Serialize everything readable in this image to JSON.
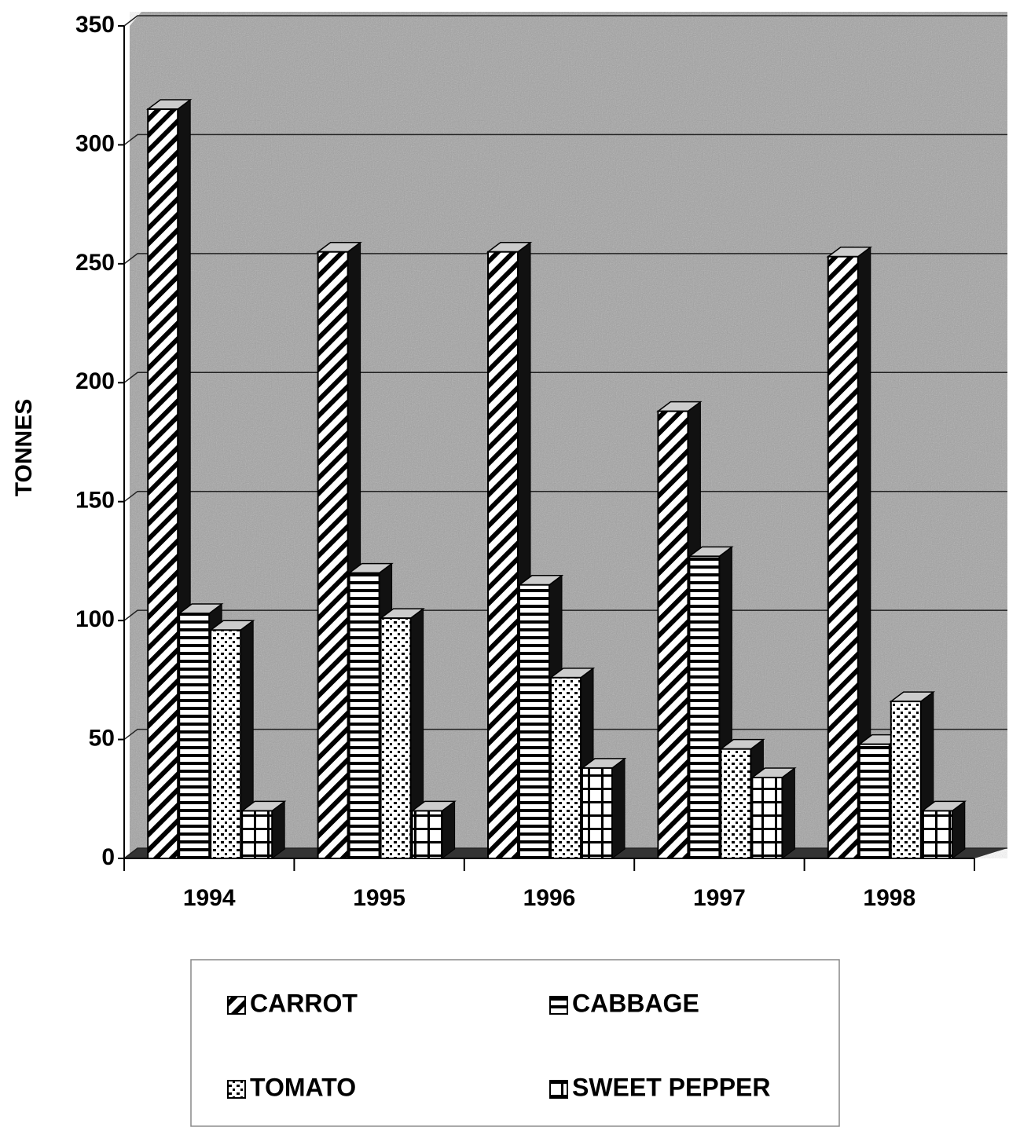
{
  "chart_data": {
    "type": "bar3d",
    "y_label": "TONNES",
    "categories": [
      "1994",
      "1995",
      "1996",
      "1997",
      "1998"
    ],
    "series": [
      {
        "name": "CARROT",
        "color": "#000000",
        "pattern": "diagonal",
        "values": [
          315,
          255,
          255,
          188,
          253
        ]
      },
      {
        "name": "CABBAGE",
        "color": "#000000",
        "pattern": "horizontal",
        "values": [
          103,
          120,
          115,
          127,
          48
        ]
      },
      {
        "name": "TOMATO",
        "color": "#000000",
        "pattern": "dots",
        "values": [
          96,
          101,
          76,
          46,
          66
        ]
      },
      {
        "name": "SWEET PEPPER",
        "color": "#000000",
        "pattern": "grid",
        "values": [
          20,
          20,
          38,
          34,
          20
        ]
      }
    ],
    "ylim": [
      0,
      350
    ],
    "yticks": [
      0,
      50,
      100,
      150,
      200,
      250,
      300,
      350
    ],
    "grid": true,
    "legend": "bottom"
  }
}
